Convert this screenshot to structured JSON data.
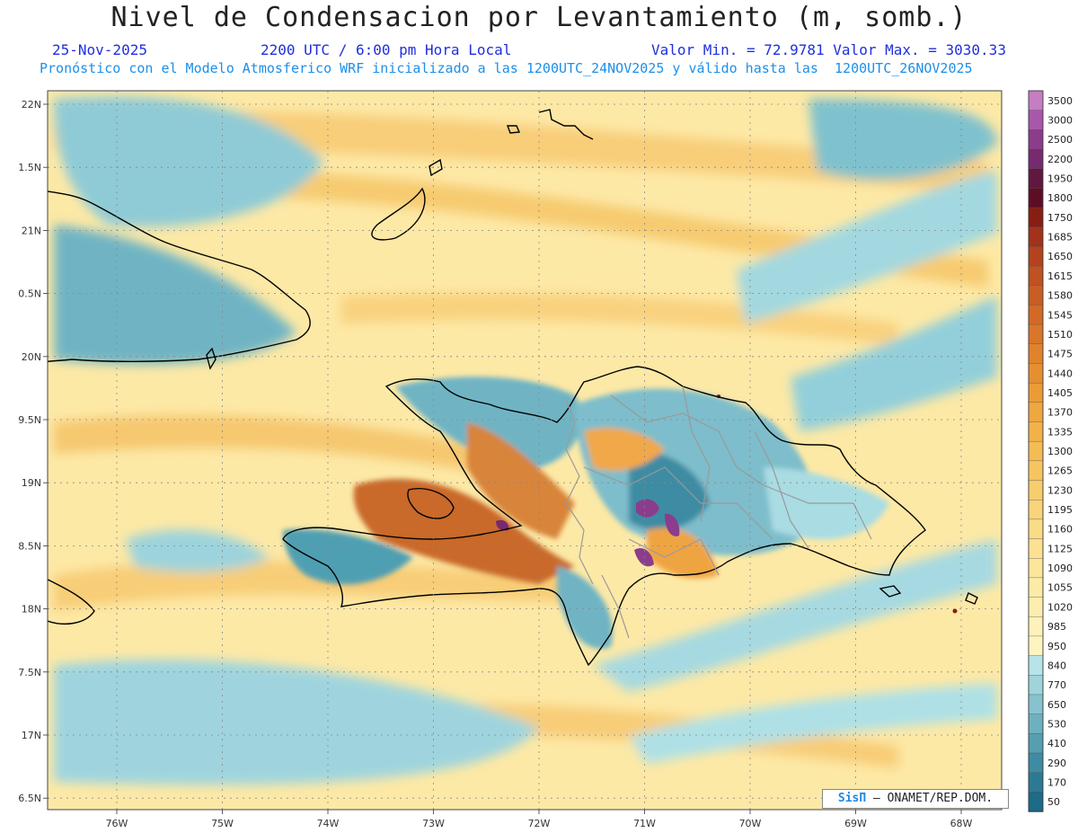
{
  "title": "Nivel de Condensacion por Levantamiento (m, somb.)",
  "date": "25-Nov-2025",
  "time": "2200 UTC / 6:00 pm Hora Local",
  "stats": "Valor Min. = 72.9781  Valor Max. = 3030.33",
  "forecast_note": "Pronóstico con el Modelo Atmosferico WRF inicializado a las 1200UTC_24NOV2025 y válido hasta las  1200UTC_26NOV2025",
  "credit": {
    "brand": "SisΠ",
    "org": "– ONAMET/REP.DOM."
  },
  "map": {
    "lat_labels": [
      "22N",
      "1.5N",
      "21N",
      "0.5N",
      "20N",
      "9.5N",
      "19N",
      "8.5N",
      "18N",
      "7.5N",
      "17N",
      "6.5N"
    ],
    "lon_labels": [
      "76W",
      "75W",
      "74W",
      "73W",
      "72W",
      "71W",
      "70W",
      "69W",
      "68W"
    ]
  },
  "colorbar": {
    "labels": [
      "3500",
      "3000",
      "2500",
      "2200",
      "1950",
      "1800",
      "1750",
      "1685",
      "1650",
      "1615",
      "1580",
      "1545",
      "1510",
      "1475",
      "1440",
      "1405",
      "1370",
      "1335",
      "1300",
      "1265",
      "1230",
      "1195",
      "1160",
      "1125",
      "1090",
      "1055",
      "1020",
      "985",
      "950",
      "840",
      "770",
      "650",
      "530",
      "410",
      "290",
      "170",
      "50"
    ],
    "colors": [
      "#c77dc4",
      "#a858a8",
      "#8c3c8c",
      "#782a6e",
      "#62173f",
      "#5d0e25",
      "#8a1d12",
      "#a1331a",
      "#b4421f",
      "#bf5122",
      "#c85e24",
      "#d26a26",
      "#d97629",
      "#e0832c",
      "#e68f31",
      "#eb9b38",
      "#efa740",
      "#f2b24a",
      "#f4bc55",
      "#f6c561",
      "#f8cd6d",
      "#f9d47a",
      "#fadb86",
      "#fbe191",
      "#fce69c",
      "#fdeaa6",
      "#fdedaf",
      "#fef1b9",
      "#fef4c2",
      "#b6e4ea",
      "#9fd4dc",
      "#86c3ce",
      "#6db1c0",
      "#559fb1",
      "#3e8ca3",
      "#2b7a95",
      "#1c6b87"
    ]
  }
}
